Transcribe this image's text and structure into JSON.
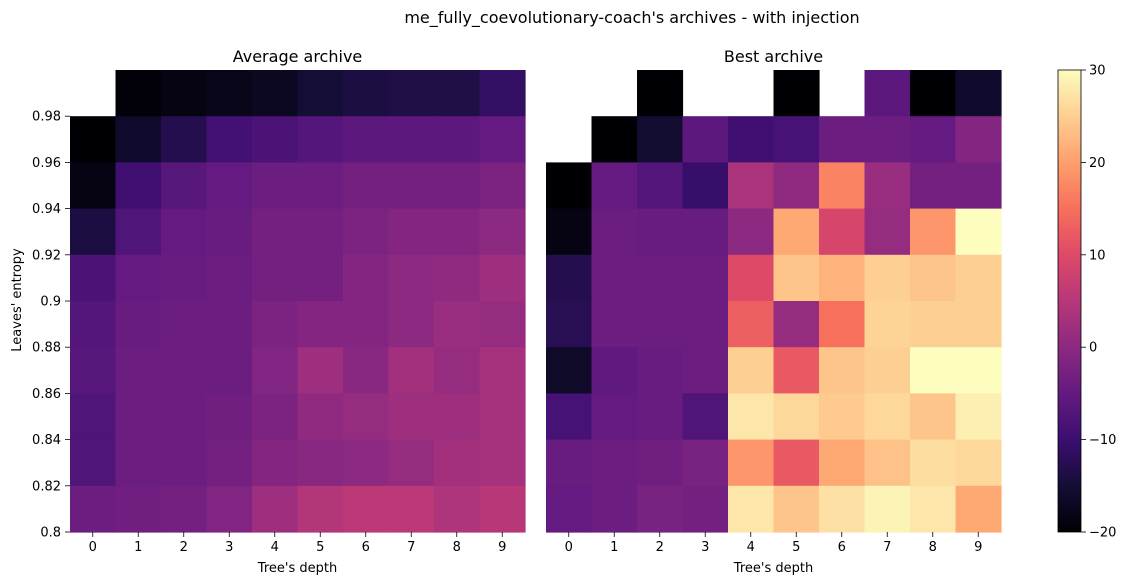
{
  "figure": {
    "suptitle": "me_fully_coevolutionary-coach's archives - with injection"
  },
  "colormap": {
    "name": "magma",
    "stops": [
      "#000004",
      "#140e36",
      "#3b0f70",
      "#641a80",
      "#8c2981",
      "#b73779",
      "#de4968",
      "#f7705c",
      "#fe9f6d",
      "#fecf92",
      "#fcfdbf"
    ]
  },
  "colorbar": {
    "min": -20,
    "max": 30,
    "ticks": [
      "-20",
      "-10",
      "0",
      "10",
      "20",
      "30"
    ]
  },
  "chart_data": [
    {
      "type": "heatmap",
      "title": "Average archive",
      "xlabel": "Tree's depth",
      "ylabel": "Leaves' entropy",
      "x_ticks": [
        "0",
        "1",
        "2",
        "3",
        "4",
        "5",
        "6",
        "7",
        "8",
        "9"
      ],
      "y_ticks": [
        "0.98",
        "0.96",
        "0.94",
        "0.92",
        "0.9",
        "0.88",
        "0.86",
        "0.84",
        "0.82",
        "0.8"
      ],
      "vmin": -20,
      "vmax": 30,
      "rows_top_to_bottom": [
        [
          null,
          -19.5,
          -18.5,
          -18,
          -17,
          -15,
          -14,
          -13.5,
          -13.5,
          -11
        ],
        [
          -20,
          -16,
          -13,
          -9,
          -8,
          -7,
          -6,
          -6,
          -6,
          -5
        ],
        [
          -18.5,
          -9.5,
          -6.5,
          -5,
          -4,
          -4,
          -3,
          -3,
          -3,
          -2
        ],
        [
          -14,
          -7.5,
          -5,
          -4.5,
          -3,
          -3,
          -2,
          -1,
          -1,
          0
        ],
        [
          -8,
          -5,
          -4.5,
          -4,
          -3,
          -3,
          -1,
          0,
          0.5,
          2
        ],
        [
          -7,
          -4.5,
          -4,
          -4,
          -2,
          -1,
          -1,
          0,
          1.5,
          1
        ],
        [
          -6.5,
          -4,
          -4,
          -4,
          -1.5,
          2,
          -0.5,
          2.5,
          1,
          3
        ],
        [
          -7.5,
          -4,
          -4,
          -3.5,
          -2,
          0.5,
          1,
          2,
          2,
          3
        ],
        [
          -7.5,
          -4,
          -4,
          -3,
          -1,
          -0.5,
          0,
          1,
          2.5,
          3
        ],
        [
          -4,
          -3.5,
          -3,
          -1.5,
          2,
          4.5,
          5.5,
          5.5,
          4,
          5
        ]
      ]
    },
    {
      "type": "heatmap",
      "title": "Best archive",
      "xlabel": "Tree's depth",
      "ylabel": "",
      "x_ticks": [
        "0",
        "1",
        "2",
        "3",
        "4",
        "5",
        "6",
        "7",
        "8",
        "9"
      ],
      "y_ticks": [],
      "vmin": -20,
      "vmax": 30,
      "rows_top_to_bottom": [
        [
          null,
          null,
          -20,
          null,
          null,
          -20,
          null,
          -6,
          -20,
          -16
        ],
        [
          null,
          -20,
          -15.5,
          -6,
          -9.5,
          -8.5,
          -4,
          -4,
          -5,
          -1
        ],
        [
          -20,
          -5,
          -7,
          -10.5,
          3.5,
          0.5,
          17,
          1.5,
          -3,
          -3
        ],
        [
          -18.5,
          -4,
          -4.5,
          -4.5,
          0,
          21,
          9,
          1,
          19,
          30
        ],
        [
          -13,
          -4,
          -4,
          -4,
          10,
          24,
          22,
          25,
          24,
          25
        ],
        [
          -12.5,
          -4,
          -4,
          -4,
          13,
          1,
          15,
          25.5,
          25,
          25
        ],
        [
          -16.5,
          -5.5,
          -4.5,
          -4,
          25,
          12,
          24,
          25,
          30,
          30
        ],
        [
          -8.5,
          -5,
          -4.5,
          -7.5,
          27.5,
          26,
          24.5,
          26,
          24,
          28.5
        ],
        [
          -4.5,
          -4,
          -3.5,
          -2.5,
          19,
          12,
          21,
          23.5,
          26.5,
          26
        ],
        [
          -5,
          -4,
          -2.5,
          -3,
          27.5,
          24,
          27,
          29,
          27.5,
          21
        ]
      ]
    }
  ]
}
